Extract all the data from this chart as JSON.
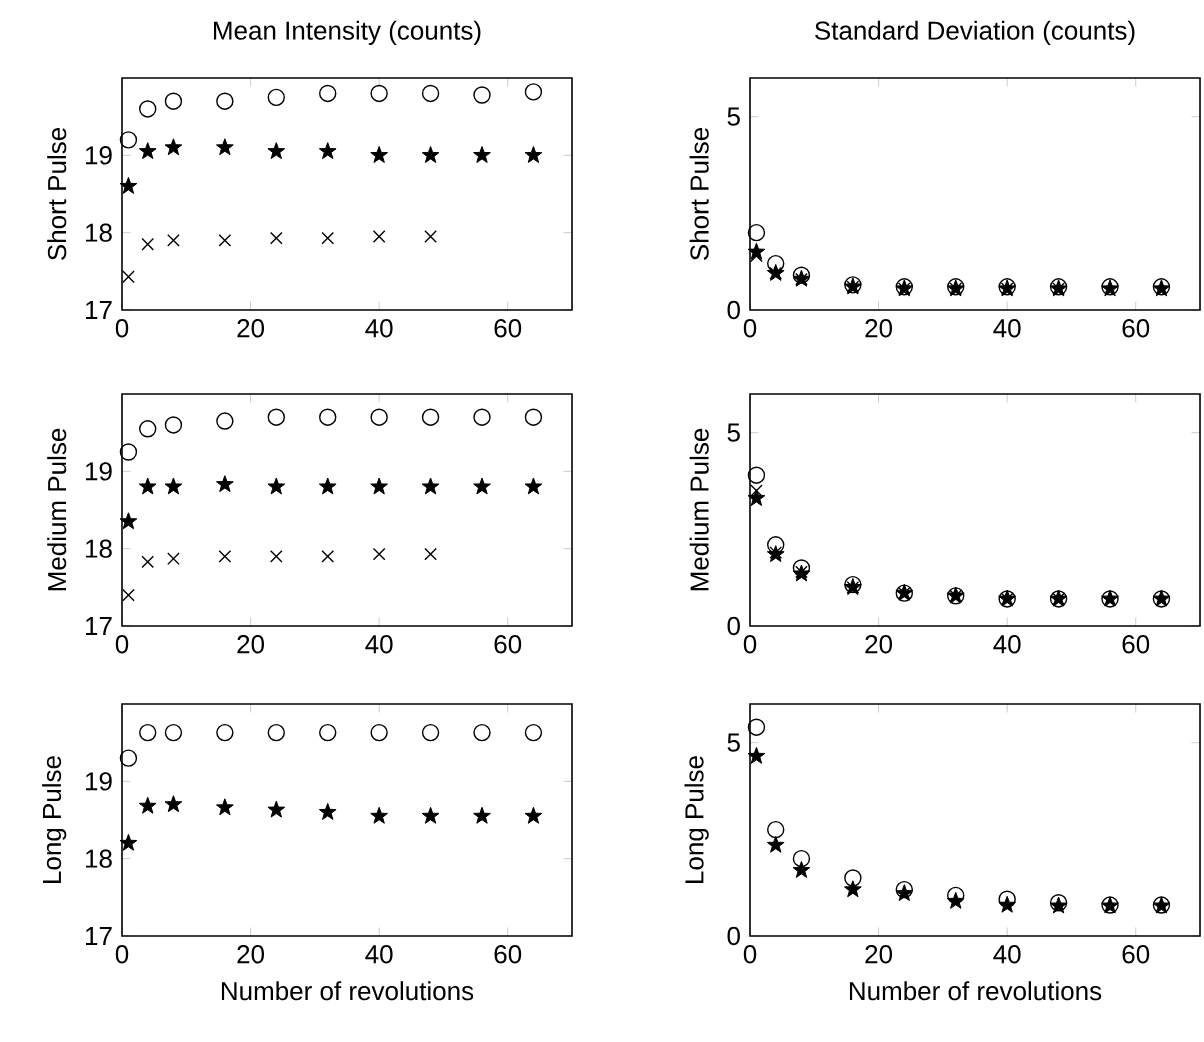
{
  "chart_data": [
    {
      "type": "scatter",
      "title": "Mean Intensity (counts)",
      "ylabel": "Short Pulse",
      "xlim": [
        0,
        70
      ],
      "ylim": [
        17,
        20
      ],
      "xticks": [
        0,
        20,
        40,
        60
      ],
      "yticks": [
        17,
        18,
        19
      ],
      "series": [
        {
          "color": "#000000",
          "marker": "circle",
          "x": [
            1,
            4,
            8,
            16,
            24,
            32,
            40,
            48,
            56,
            64
          ],
          "values": [
            19.2,
            19.6,
            19.7,
            19.7,
            19.75,
            19.8,
            19.8,
            19.8,
            19.78,
            19.82
          ]
        },
        {
          "color": "#000000",
          "marker": "star",
          "x": [
            1,
            4,
            8,
            16,
            24,
            32,
            40,
            48,
            56,
            64
          ],
          "values": [
            18.6,
            19.05,
            19.1,
            19.1,
            19.05,
            19.05,
            19.0,
            19.0,
            19.0,
            19.0
          ]
        },
        {
          "color": "#000000",
          "marker": "cross",
          "x": [
            1,
            4,
            8,
            16,
            24,
            32,
            40,
            48
          ],
          "values": [
            17.43,
            17.85,
            17.9,
            17.9,
            17.93,
            17.93,
            17.95,
            17.95
          ]
        }
      ]
    },
    {
      "type": "scatter",
      "title": "Standard Deviation (counts)",
      "ylabel": "Short Pulse",
      "xlim": [
        0,
        70
      ],
      "ylim": [
        0,
        6
      ],
      "xticks": [
        0,
        20,
        40,
        60
      ],
      "yticks": [
        0,
        5
      ],
      "series": [
        {
          "color": "#000000",
          "marker": "circle",
          "x": [
            1,
            4,
            8,
            16,
            24,
            32,
            40,
            48,
            56,
            64
          ],
          "values": [
            2.0,
            1.2,
            0.9,
            0.65,
            0.6,
            0.6,
            0.6,
            0.6,
            0.6,
            0.6
          ]
        },
        {
          "color": "#000000",
          "marker": "star",
          "x": [
            1,
            4,
            8,
            16,
            24,
            32,
            40,
            48,
            56,
            64
          ],
          "values": [
            1.5,
            0.95,
            0.8,
            0.6,
            0.55,
            0.55,
            0.55,
            0.55,
            0.55,
            0.55
          ]
        },
        {
          "color": "#000000",
          "marker": "cross",
          "x": [
            1,
            4,
            8,
            16,
            24,
            32,
            40,
            48
          ],
          "values": [
            1.4,
            0.95,
            0.8,
            0.6,
            0.55,
            0.55,
            0.55,
            0.55
          ]
        }
      ]
    },
    {
      "type": "scatter",
      "ylabel": "Medium Pulse",
      "xlim": [
        0,
        70
      ],
      "ylim": [
        17,
        20
      ],
      "xticks": [
        0,
        20,
        40,
        60
      ],
      "yticks": [
        17,
        18,
        19
      ],
      "series": [
        {
          "color": "#000000",
          "marker": "circle",
          "x": [
            1,
            4,
            8,
            16,
            24,
            32,
            40,
            48,
            56,
            64
          ],
          "values": [
            19.25,
            19.55,
            19.6,
            19.65,
            19.7,
            19.7,
            19.7,
            19.7,
            19.7,
            19.7
          ]
        },
        {
          "color": "#000000",
          "marker": "star",
          "x": [
            1,
            4,
            8,
            16,
            24,
            32,
            40,
            48,
            56,
            64
          ],
          "values": [
            18.35,
            18.8,
            18.8,
            18.83,
            18.8,
            18.8,
            18.8,
            18.8,
            18.8,
            18.8
          ]
        },
        {
          "color": "#000000",
          "marker": "cross",
          "x": [
            1,
            4,
            8,
            16,
            24,
            32,
            40,
            48
          ],
          "values": [
            17.4,
            17.83,
            17.87,
            17.9,
            17.9,
            17.9,
            17.93,
            17.93
          ]
        }
      ]
    },
    {
      "type": "scatter",
      "ylabel": "Medium Pulse",
      "xlim": [
        0,
        70
      ],
      "ylim": [
        0,
        6
      ],
      "xticks": [
        0,
        20,
        40,
        60
      ],
      "yticks": [
        0,
        5
      ],
      "series": [
        {
          "color": "#000000",
          "marker": "circle",
          "x": [
            1,
            4,
            8,
            16,
            24,
            32,
            40,
            48,
            56,
            64
          ],
          "values": [
            3.9,
            2.1,
            1.5,
            1.07,
            0.85,
            0.78,
            0.7,
            0.7,
            0.7,
            0.7
          ]
        },
        {
          "color": "#000000",
          "marker": "star",
          "x": [
            1,
            4,
            8,
            16,
            24,
            32,
            40,
            48,
            56,
            64
          ],
          "values": [
            3.3,
            1.85,
            1.35,
            1.0,
            0.85,
            0.78,
            0.7,
            0.7,
            0.7,
            0.7
          ]
        },
        {
          "color": "#000000",
          "marker": "cross",
          "x": [
            1,
            4,
            8,
            16,
            24,
            32,
            40,
            48
          ],
          "values": [
            3.5,
            1.9,
            1.4,
            1.0,
            0.85,
            0.78,
            0.7,
            0.7
          ]
        }
      ]
    },
    {
      "type": "scatter",
      "ylabel": "Long Pulse",
      "xlabel": "Number of revolutions",
      "xlim": [
        0,
        70
      ],
      "ylim": [
        17,
        20
      ],
      "xticks": [
        0,
        20,
        40,
        60
      ],
      "yticks": [
        17,
        18,
        19
      ],
      "series": [
        {
          "color": "#000000",
          "marker": "circle",
          "x": [
            1,
            4,
            8,
            16,
            24,
            32,
            40,
            48,
            56,
            64
          ],
          "values": [
            19.3,
            19.63,
            19.63,
            19.63,
            19.63,
            19.63,
            19.63,
            19.63,
            19.63,
            19.63
          ]
        },
        {
          "color": "#000000",
          "marker": "star",
          "x": [
            1,
            4,
            8,
            16,
            24,
            32,
            40,
            48,
            56,
            64
          ],
          "values": [
            18.2,
            18.68,
            18.7,
            18.66,
            18.63,
            18.6,
            18.55,
            18.55,
            18.55,
            18.55
          ]
        }
      ]
    },
    {
      "type": "scatter",
      "ylabel": "Long Pulse",
      "xlabel": "Number of revolutions",
      "xlim": [
        0,
        70
      ],
      "ylim": [
        0,
        6
      ],
      "xticks": [
        0,
        20,
        40,
        60
      ],
      "yticks": [
        0,
        5
      ],
      "series": [
        {
          "color": "#000000",
          "marker": "circle",
          "x": [
            1,
            4,
            8,
            16,
            24,
            32,
            40,
            48,
            56,
            64
          ],
          "values": [
            5.4,
            2.75,
            2.0,
            1.5,
            1.2,
            1.05,
            0.95,
            0.86,
            0.8,
            0.8
          ]
        },
        {
          "color": "#000000",
          "marker": "star",
          "x": [
            1,
            4,
            8,
            16,
            24,
            32,
            40,
            48,
            56,
            64
          ],
          "values": [
            4.65,
            2.35,
            1.7,
            1.2,
            1.1,
            0.9,
            0.8,
            0.78,
            0.78,
            0.78
          ]
        }
      ]
    }
  ]
}
